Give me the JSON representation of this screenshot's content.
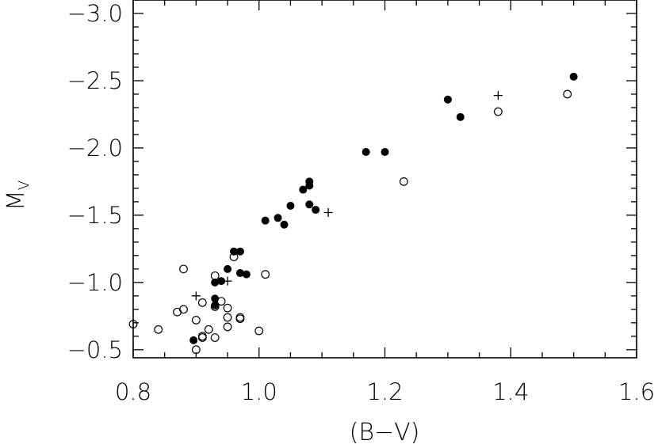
{
  "chart_data": {
    "type": "scatter",
    "xlabel": "(B−V)",
    "ylabel": "M",
    "ylabel_subscript": "V",
    "xlim": [
      0.8,
      1.6
    ],
    "ylim": [
      -0.44,
      -3.1
    ],
    "y_inverted": true,
    "grid": false,
    "x_ticks": [
      0.8,
      1.0,
      1.2,
      1.4,
      1.6
    ],
    "x_tick_labels": [
      "0.8",
      "1.0",
      "1.2",
      "1.4",
      "1.6"
    ],
    "y_ticks": [
      -0.5,
      -1.0,
      -1.5,
      -2.0,
      -2.5,
      -3.0
    ],
    "y_tick_labels": [
      "−0.5",
      "−1.0",
      "−1.5",
      "−2.0",
      "−2.5",
      "−3.0"
    ],
    "series": [
      {
        "marker": "filled-circle",
        "points": [
          [
            0.896,
            -0.57
          ],
          [
            0.93,
            -0.83
          ],
          [
            0.93,
            -0.88
          ],
          [
            0.93,
            -1.0
          ],
          [
            0.94,
            -1.01
          ],
          [
            0.95,
            -1.1
          ],
          [
            0.96,
            -1.23
          ],
          [
            0.97,
            -1.23
          ],
          [
            0.97,
            -1.07
          ],
          [
            0.98,
            -1.06
          ],
          [
            1.01,
            -1.46
          ],
          [
            1.03,
            -1.48
          ],
          [
            1.04,
            -1.43
          ],
          [
            1.05,
            -1.57
          ],
          [
            1.07,
            -1.69
          ],
          [
            1.08,
            -1.75
          ],
          [
            1.08,
            -1.72
          ],
          [
            1.08,
            -1.58
          ],
          [
            1.09,
            -1.54
          ],
          [
            1.17,
            -1.97
          ],
          [
            1.2,
            -1.97
          ],
          [
            1.3,
            -2.36
          ],
          [
            1.32,
            -2.23
          ],
          [
            1.5,
            -2.53
          ]
        ]
      },
      {
        "marker": "open-circle",
        "points": [
          [
            0.8,
            -0.69
          ],
          [
            0.84,
            -0.65
          ],
          [
            0.87,
            -0.78
          ],
          [
            0.88,
            -0.8
          ],
          [
            0.88,
            -1.1
          ],
          [
            0.9,
            -0.72
          ],
          [
            0.9,
            -0.5
          ],
          [
            0.91,
            -0.6
          ],
          [
            0.91,
            -0.59
          ],
          [
            0.91,
            -0.85
          ],
          [
            0.92,
            -0.65
          ],
          [
            0.93,
            -0.82
          ],
          [
            0.93,
            -0.59
          ],
          [
            0.93,
            -1.05
          ],
          [
            0.94,
            -0.86
          ],
          [
            0.95,
            -0.81
          ],
          [
            0.95,
            -0.74
          ],
          [
            0.95,
            -0.67
          ],
          [
            0.96,
            -1.19
          ],
          [
            0.97,
            -0.74
          ],
          [
            0.97,
            -0.73
          ],
          [
            1.0,
            -0.64
          ],
          [
            1.01,
            -1.06
          ],
          [
            1.23,
            -1.75
          ],
          [
            1.38,
            -2.27
          ],
          [
            1.49,
            -2.4
          ]
        ]
      },
      {
        "marker": "plus",
        "points": [
          [
            0.9,
            -0.9
          ],
          [
            0.95,
            -1.01
          ],
          [
            1.11,
            -1.52
          ],
          [
            1.38,
            -2.39
          ]
        ]
      }
    ]
  }
}
